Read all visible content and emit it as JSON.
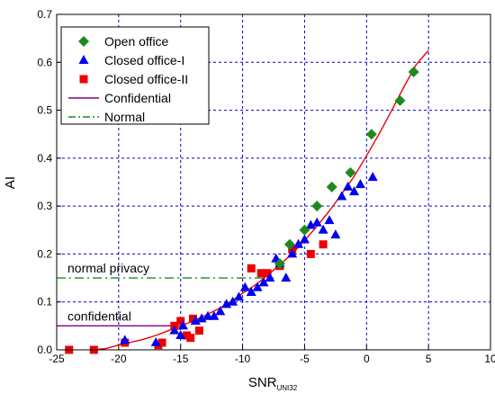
{
  "chart_data": {
    "type": "scatter",
    "xlabel": "SNR",
    "xlabel_sub": "UNI32",
    "ylabel": "AI",
    "xlim": [
      -25,
      10
    ],
    "ylim": [
      0,
      0.7
    ],
    "xticks": [
      -25,
      -20,
      -15,
      -10,
      -5,
      0,
      5,
      10
    ],
    "yticks": [
      0.0,
      0.1,
      0.2,
      0.3,
      0.4,
      0.5,
      0.6,
      0.7
    ],
    "xtick_labels": [
      "-25",
      "-20",
      "-15",
      "-10",
      "-5",
      "0",
      "5",
      "10"
    ],
    "ytick_labels": [
      "0.0",
      "0.1",
      "0.2",
      "0.3",
      "0.4",
      "0.5",
      "0.6",
      "0.7"
    ],
    "grid": true,
    "legend_position": "top-left",
    "legend": [
      {
        "label": "Open office",
        "marker": "diamond",
        "color": "#1e8a1e"
      },
      {
        "label": "Closed office-I",
        "marker": "triangle",
        "color": "#0000ee"
      },
      {
        "label": "Closed office-II",
        "marker": "square",
        "color": "#ee0000"
      },
      {
        "label": "Confidential",
        "line": "solid",
        "color": "#800080"
      },
      {
        "label": "Normal",
        "line": "dashdot",
        "color": "#1e8a1e"
      }
    ],
    "series": [
      {
        "name": "Open office",
        "marker": "diamond",
        "color": "#1e8a1e",
        "points": [
          [
            -7.0,
            0.18
          ],
          [
            -6.2,
            0.22
          ],
          [
            -5.0,
            0.25
          ],
          [
            -4.0,
            0.3
          ],
          [
            -2.8,
            0.34
          ],
          [
            -1.3,
            0.37
          ],
          [
            0.4,
            0.45
          ],
          [
            2.7,
            0.52
          ],
          [
            3.8,
            0.58
          ]
        ]
      },
      {
        "name": "Closed office-I",
        "marker": "triangle",
        "color": "#0000ee",
        "points": [
          [
            -19.5,
            0.02
          ],
          [
            -17.0,
            0.015
          ],
          [
            -15.5,
            0.04
          ],
          [
            -15.0,
            0.03
          ],
          [
            -14.8,
            0.05
          ],
          [
            -13.8,
            0.06
          ],
          [
            -13.3,
            0.065
          ],
          [
            -12.8,
            0.07
          ],
          [
            -12.3,
            0.07
          ],
          [
            -11.8,
            0.08
          ],
          [
            -11.3,
            0.095
          ],
          [
            -10.8,
            0.1
          ],
          [
            -10.3,
            0.11
          ],
          [
            -9.8,
            0.13
          ],
          [
            -9.3,
            0.12
          ],
          [
            -8.8,
            0.13
          ],
          [
            -8.3,
            0.14
          ],
          [
            -7.8,
            0.15
          ],
          [
            -7.3,
            0.19
          ],
          [
            -7.0,
            0.18
          ],
          [
            -6.5,
            0.15
          ],
          [
            -6.0,
            0.2
          ],
          [
            -5.5,
            0.22
          ],
          [
            -5.0,
            0.23
          ],
          [
            -4.5,
            0.26
          ],
          [
            -4.0,
            0.265
          ],
          [
            -3.5,
            0.25
          ],
          [
            -3.0,
            0.27
          ],
          [
            -2.5,
            0.24
          ],
          [
            -2.0,
            0.32
          ],
          [
            -1.5,
            0.34
          ],
          [
            -1.0,
            0.33
          ],
          [
            -0.5,
            0.345
          ],
          [
            0.5,
            0.36
          ]
        ]
      },
      {
        "name": "Closed office-II",
        "marker": "square",
        "color": "#ee0000",
        "points": [
          [
            -24.0,
            0.0
          ],
          [
            -22.0,
            0.0
          ],
          [
            -19.5,
            0.015
          ],
          [
            -16.8,
            0.01
          ],
          [
            -16.5,
            0.015
          ],
          [
            -15.5,
            0.05
          ],
          [
            -15.0,
            0.06
          ],
          [
            -14.5,
            0.03
          ],
          [
            -14.2,
            0.025
          ],
          [
            -14.0,
            0.065
          ],
          [
            -13.5,
            0.04
          ],
          [
            -9.3,
            0.17
          ],
          [
            -8.5,
            0.16
          ],
          [
            -8.0,
            0.16
          ],
          [
            -7.0,
            0.175
          ],
          [
            -6.0,
            0.21
          ],
          [
            -4.5,
            0.2
          ],
          [
            -3.5,
            0.22
          ]
        ]
      }
    ],
    "fit_curve": {
      "color": "#ee0000",
      "points": [
        [
          -22.0,
          0.0
        ],
        [
          -21.0,
          0.003
        ],
        [
          -20.0,
          0.01
        ],
        [
          -19.0,
          0.016
        ],
        [
          -18.0,
          0.022
        ],
        [
          -17.0,
          0.03
        ],
        [
          -16.0,
          0.04
        ],
        [
          -15.0,
          0.05
        ],
        [
          -14.0,
          0.06
        ],
        [
          -13.0,
          0.072
        ],
        [
          -12.0,
          0.085
        ],
        [
          -11.0,
          0.1
        ],
        [
          -10.0,
          0.118
        ],
        [
          -9.0,
          0.135
        ],
        [
          -8.0,
          0.155
        ],
        [
          -7.0,
          0.178
        ],
        [
          -6.0,
          0.2
        ],
        [
          -5.0,
          0.228
        ],
        [
          -4.0,
          0.258
        ],
        [
          -3.0,
          0.29
        ],
        [
          -2.0,
          0.325
        ],
        [
          -1.0,
          0.362
        ],
        [
          0.0,
          0.405
        ],
        [
          1.0,
          0.45
        ],
        [
          2.0,
          0.498
        ],
        [
          3.0,
          0.548
        ],
        [
          4.0,
          0.595
        ],
        [
          5.0,
          0.625
        ]
      ]
    },
    "reference_lines": [
      {
        "name": "Normal",
        "y": 0.15,
        "x_from": -25,
        "x_to": -7.5,
        "style": "dashdot",
        "color": "#1e8a1e",
        "annotation": "normal privacy"
      },
      {
        "name": "Confidential",
        "y": 0.05,
        "x_from": -25,
        "x_to": -15.5,
        "style": "solid",
        "color": "#800080",
        "annotation": "confidential"
      }
    ]
  }
}
